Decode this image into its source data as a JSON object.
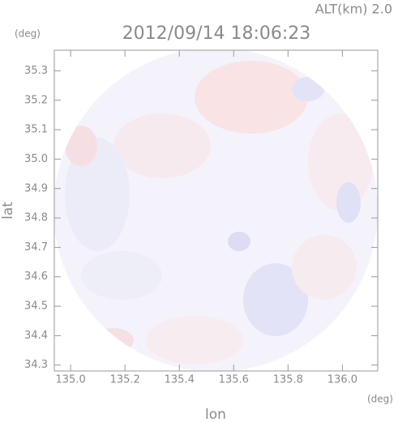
{
  "chart_data": {
    "type": "map",
    "title": "2012/09/14 18:06:23",
    "altitude_label": "ALT(km) 2.0",
    "x_label": "lon",
    "y_label": "lat",
    "x_unit": "(deg)",
    "y_unit": "(deg)",
    "xlim": [
      134.94,
      136.13
    ],
    "ylim": [
      34.28,
      35.37
    ],
    "xticks": [
      {
        "value": 135,
        "label": "135.0"
      },
      135.2,
      135.4,
      135.6,
      135.8,
      {
        "value": 136,
        "label": "136.0"
      }
    ],
    "yticks": [
      34.3,
      34.4,
      34.5,
      34.6,
      34.7,
      34.8,
      34.9,
      {
        "value": 35,
        "label": "35.0"
      },
      35.1,
      35.2,
      35.3
    ]
  }
}
